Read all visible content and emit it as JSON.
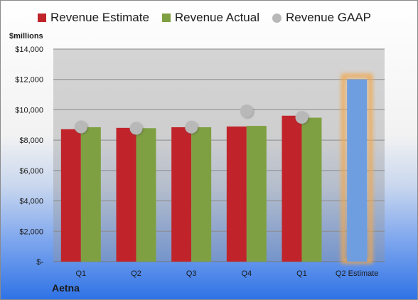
{
  "company": "Aetna",
  "colors": {
    "estimate": "#c0242a",
    "actual": "#7fa042",
    "gaap": "#b8b8b8",
    "highlight_fill": "#6f9ee0",
    "highlight_glow": "#f0a850"
  },
  "chart_data": {
    "type": "bar",
    "ylabel": "$millions",
    "ylim": [
      0,
      14000
    ],
    "yticks": [
      0,
      2000,
      4000,
      6000,
      8000,
      10000,
      12000,
      14000
    ],
    "ytick_labels": [
      "$-",
      "$2,000",
      "$4,000",
      "$6,000",
      "$8,000",
      "$10,000",
      "$12,000",
      "$14,000"
    ],
    "grid": true,
    "legend": "top",
    "categories": [
      "Q1",
      "Q2",
      "Q3",
      "Q4",
      "Q1",
      "Q2 Estimate"
    ],
    "series": [
      {
        "name": "Revenue Estimate",
        "kind": "bar",
        "values": [
          8720,
          8810,
          8850,
          8900,
          9610,
          null
        ]
      },
      {
        "name": "Revenue Actual",
        "kind": "bar",
        "values": [
          8850,
          8790,
          8850,
          8940,
          9480,
          12000
        ]
      },
      {
        "name": "Revenue GAAP",
        "kind": "point",
        "values": [
          8870,
          8780,
          8860,
          9920,
          9500,
          null
        ]
      }
    ]
  }
}
